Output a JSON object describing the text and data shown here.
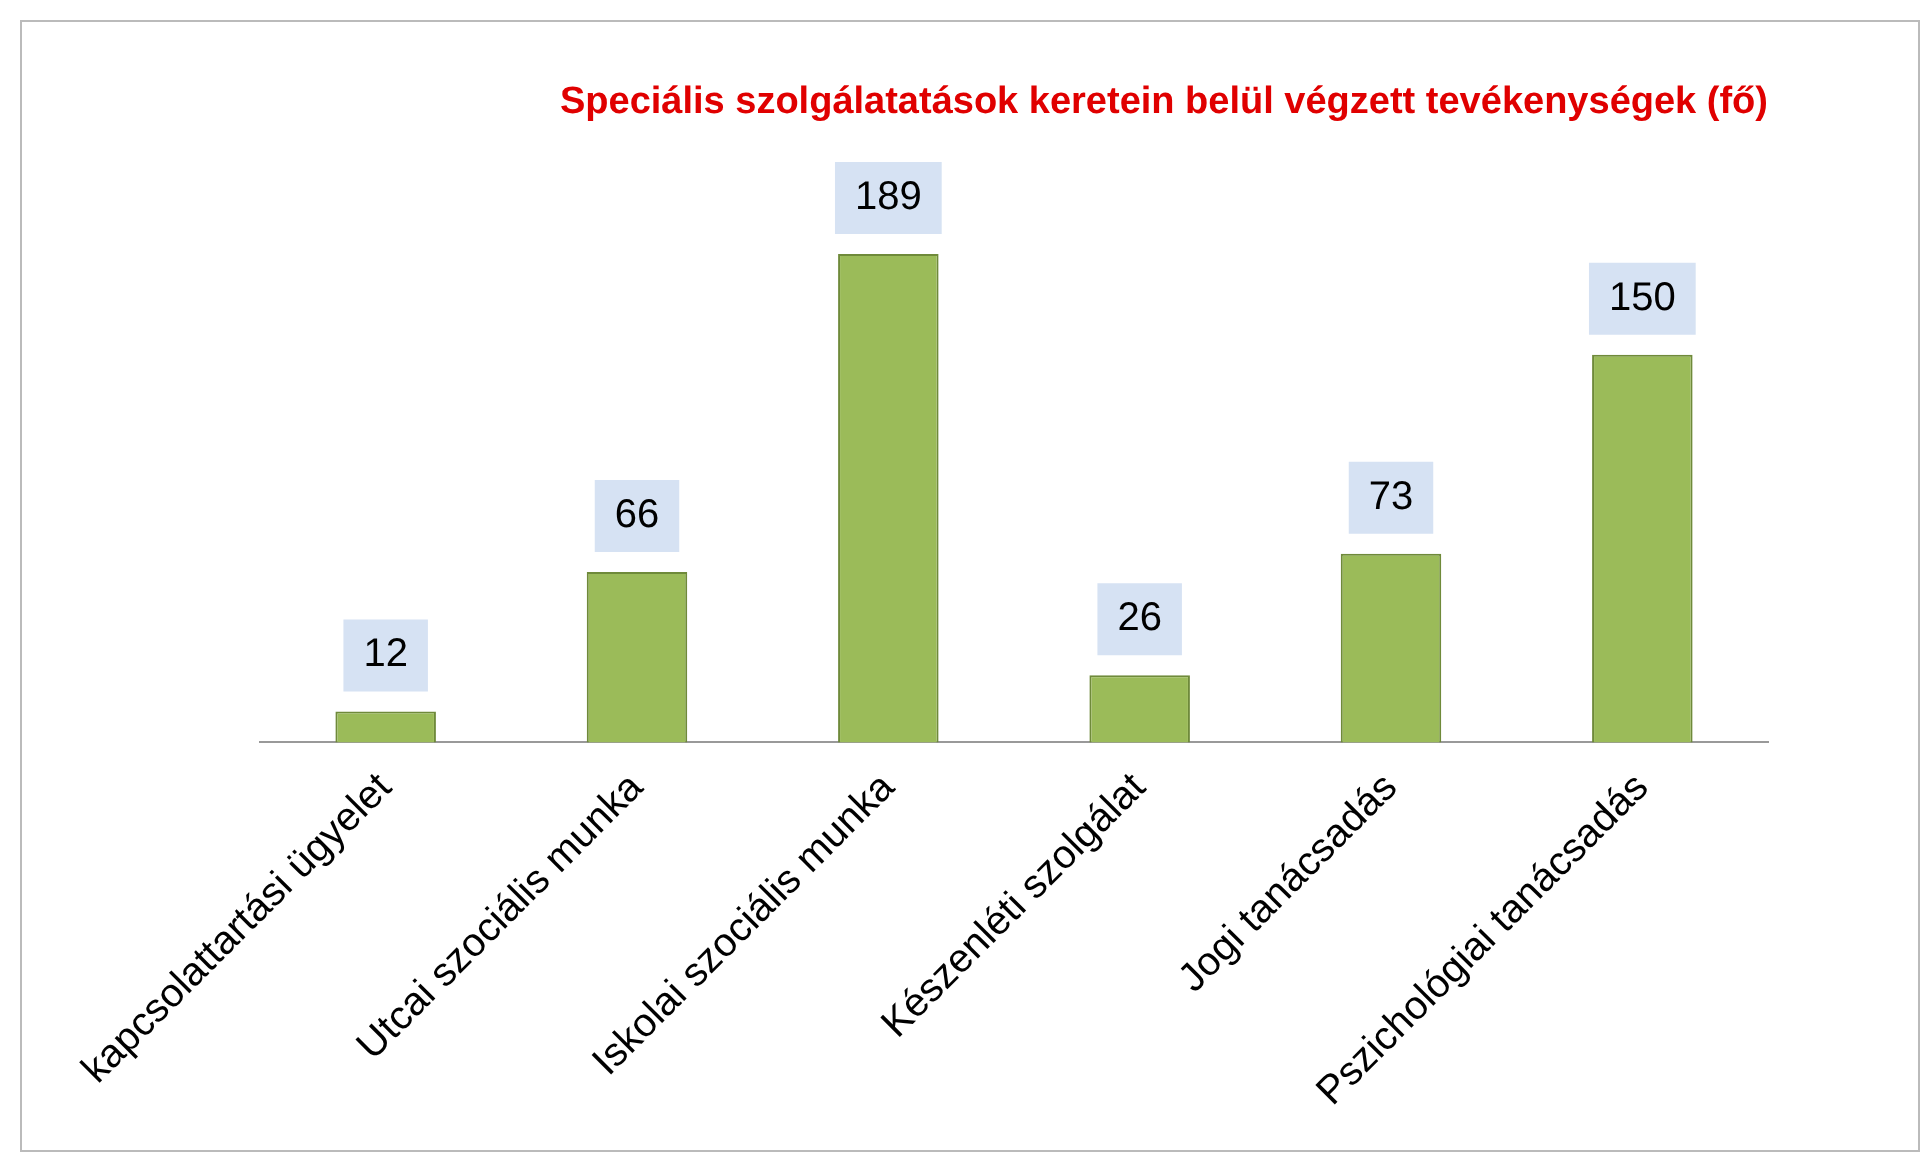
{
  "chart_data": {
    "type": "bar",
    "title": "Speciális szolgálatatások keretein belül végzett tevékenységek (fő)",
    "categories": [
      "kapcsolattartási ügyelet",
      "Utcai szociális munka",
      "Iskolai szociális munka",
      "Készenléti szolgálat",
      "Jogi tanácsadás",
      "Pszichológiai tanácsadás"
    ],
    "values": [
      12,
      66,
      189,
      26,
      73,
      150
    ],
    "color": "#9bbb59",
    "data_labels": true,
    "grid": false,
    "legend": false
  }
}
